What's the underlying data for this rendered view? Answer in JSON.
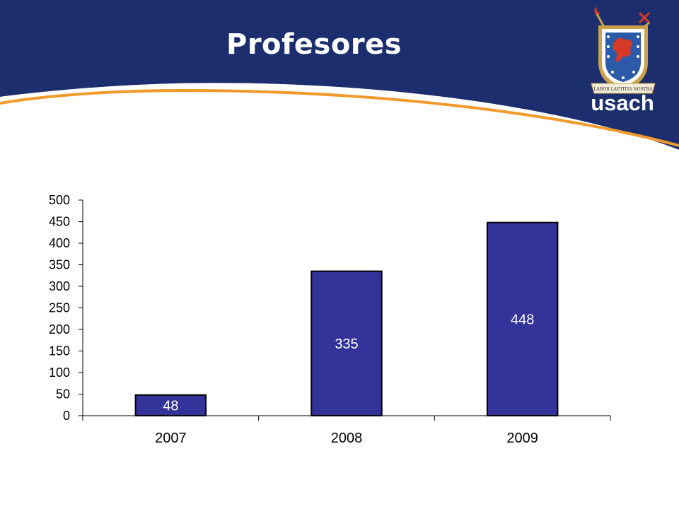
{
  "slide": {
    "title": "Profesores",
    "logo_text": "usach",
    "logo_motto": "LABOR LAETITIA NOSTRA"
  },
  "colors": {
    "header_blue": "#1c2e6e",
    "accent_orange": "#f19a2c",
    "bar_fill": "#333399",
    "bar_stroke": "#000000"
  },
  "chart_data": {
    "type": "bar",
    "categories": [
      "2007",
      "2008",
      "2009"
    ],
    "values": [
      48,
      335,
      448
    ],
    "data_labels": [
      "48",
      "335",
      "448"
    ],
    "yticks": [
      "0",
      "50",
      "100",
      "150",
      "200",
      "250",
      "300",
      "350",
      "400",
      "450",
      "500"
    ],
    "ylim": [
      0,
      500
    ],
    "grid": false,
    "legend": "none"
  }
}
